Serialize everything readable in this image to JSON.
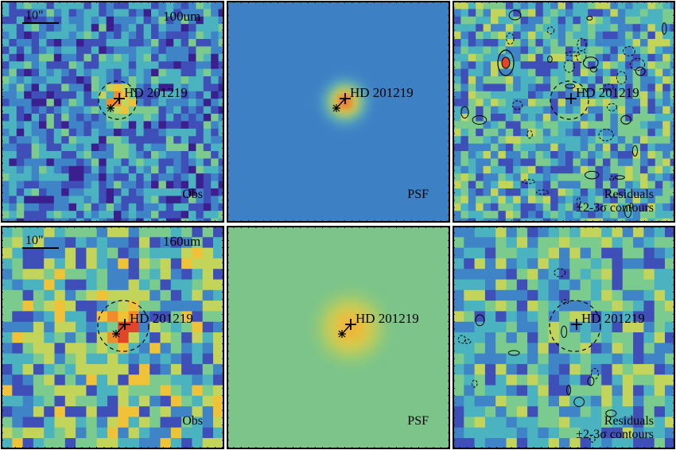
{
  "figure": {
    "target_label": "HD 201219",
    "scale_bar_label": "10\"",
    "colormap": [
      "#3b1f8e",
      "#3f4fb8",
      "#3e84c6",
      "#4bb3bf",
      "#7bcb8e",
      "#c2d55a",
      "#f0c238",
      "#f08c2a",
      "#e0452a"
    ],
    "psf_background_row1": "#3e80c4",
    "psf_background_row2": "#7cc48a",
    "contour_color": "#000000",
    "panels": [
      {
        "id": "obs-100",
        "band": "100um",
        "label": "Obs",
        "kind": "obs",
        "row": 0,
        "col": 0,
        "show_scale": true
      },
      {
        "id": "psf-100",
        "band": "",
        "label": "PSF",
        "kind": "psf",
        "row": 0,
        "col": 1,
        "show_scale": false
      },
      {
        "id": "res-100",
        "band": "",
        "label": "Residuals",
        "label2": "±2-3σ contours",
        "kind": "res",
        "row": 0,
        "col": 2,
        "show_scale": false
      },
      {
        "id": "obs-160",
        "band": "160um",
        "label": "Obs",
        "kind": "obs",
        "row": 1,
        "col": 0,
        "show_scale": true
      },
      {
        "id": "psf-160",
        "band": "",
        "label": "PSF",
        "kind": "psf",
        "row": 1,
        "col": 1,
        "show_scale": false
      },
      {
        "id": "res-160",
        "band": "",
        "label": "Residuals",
        "label2": "±2-3σ contours",
        "kind": "res",
        "row": 1,
        "col": 2,
        "show_scale": false
      }
    ]
  }
}
